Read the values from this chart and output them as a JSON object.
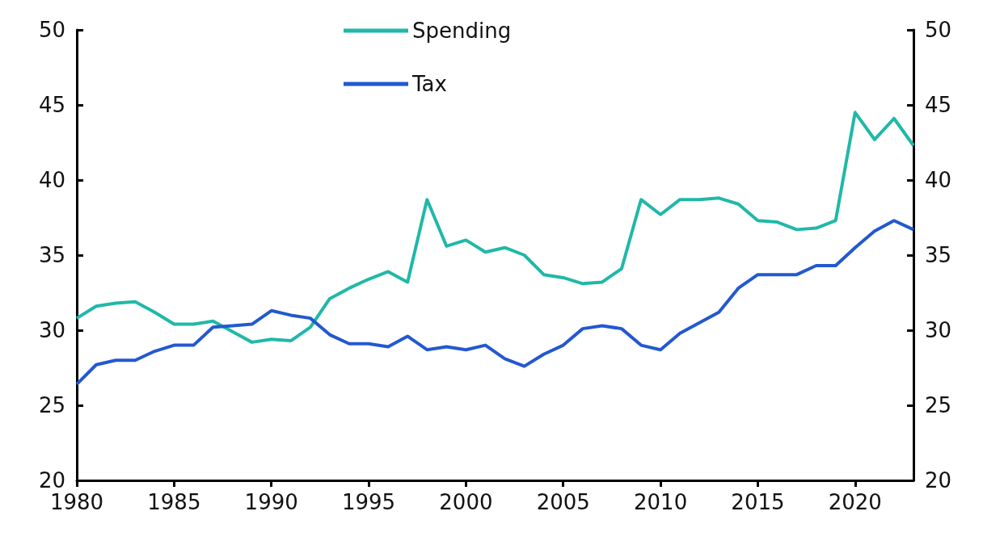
{
  "chart_data": {
    "type": "line",
    "x": [
      1980,
      1981,
      1982,
      1983,
      1984,
      1985,
      1986,
      1987,
      1988,
      1989,
      1990,
      1991,
      1992,
      1993,
      1994,
      1995,
      1996,
      1997,
      1998,
      1999,
      2000,
      2001,
      2002,
      2003,
      2004,
      2005,
      2006,
      2007,
      2008,
      2009,
      2010,
      2011,
      2012,
      2013,
      2014,
      2015,
      2016,
      2017,
      2018,
      2019,
      2020,
      2021,
      2022,
      2023
    ],
    "series": [
      {
        "name": "Spending",
        "color": "#20b8a8",
        "values": [
          30.8,
          31.6,
          31.8,
          31.9,
          31.2,
          30.4,
          30.4,
          30.6,
          29.9,
          29.2,
          29.4,
          29.3,
          30.2,
          32.1,
          32.8,
          33.4,
          33.9,
          33.2,
          38.7,
          35.6,
          36.0,
          35.2,
          35.5,
          35.0,
          33.7,
          33.5,
          33.1,
          33.2,
          34.1,
          38.7,
          37.7,
          38.7,
          38.7,
          38.8,
          38.4,
          37.3,
          37.2,
          36.7,
          36.8,
          37.3,
          44.5,
          42.7,
          44.1,
          42.3
        ]
      },
      {
        "name": "Tax",
        "color": "#2358d0",
        "values": [
          26.4,
          27.7,
          28.0,
          28.0,
          28.6,
          29.0,
          29.0,
          30.2,
          30.3,
          30.4,
          31.3,
          31.0,
          30.8,
          29.7,
          29.1,
          29.1,
          28.9,
          29.6,
          28.7,
          28.9,
          28.7,
          29.0,
          28.1,
          27.6,
          28.4,
          29.0,
          30.1,
          30.3,
          30.1,
          29.0,
          28.7,
          29.8,
          30.5,
          31.2,
          32.8,
          33.7,
          33.7,
          33.7,
          34.3,
          34.3,
          35.5,
          36.6,
          37.3,
          36.7
        ]
      }
    ],
    "xlim": [
      1980,
      2023
    ],
    "xticks": [
      1980,
      1985,
      1990,
      1995,
      2000,
      2005,
      2010,
      2015,
      2020
    ],
    "ylim": [
      20,
      50
    ],
    "yticks": [
      20,
      25,
      30,
      35,
      40,
      45,
      50
    ],
    "y2lim": [
      20,
      50
    ],
    "y2ticks": [
      20,
      25,
      30,
      35,
      40,
      45,
      50
    ],
    "grid": false,
    "legend": "top",
    "marker": "none",
    "line_style": "solid"
  }
}
